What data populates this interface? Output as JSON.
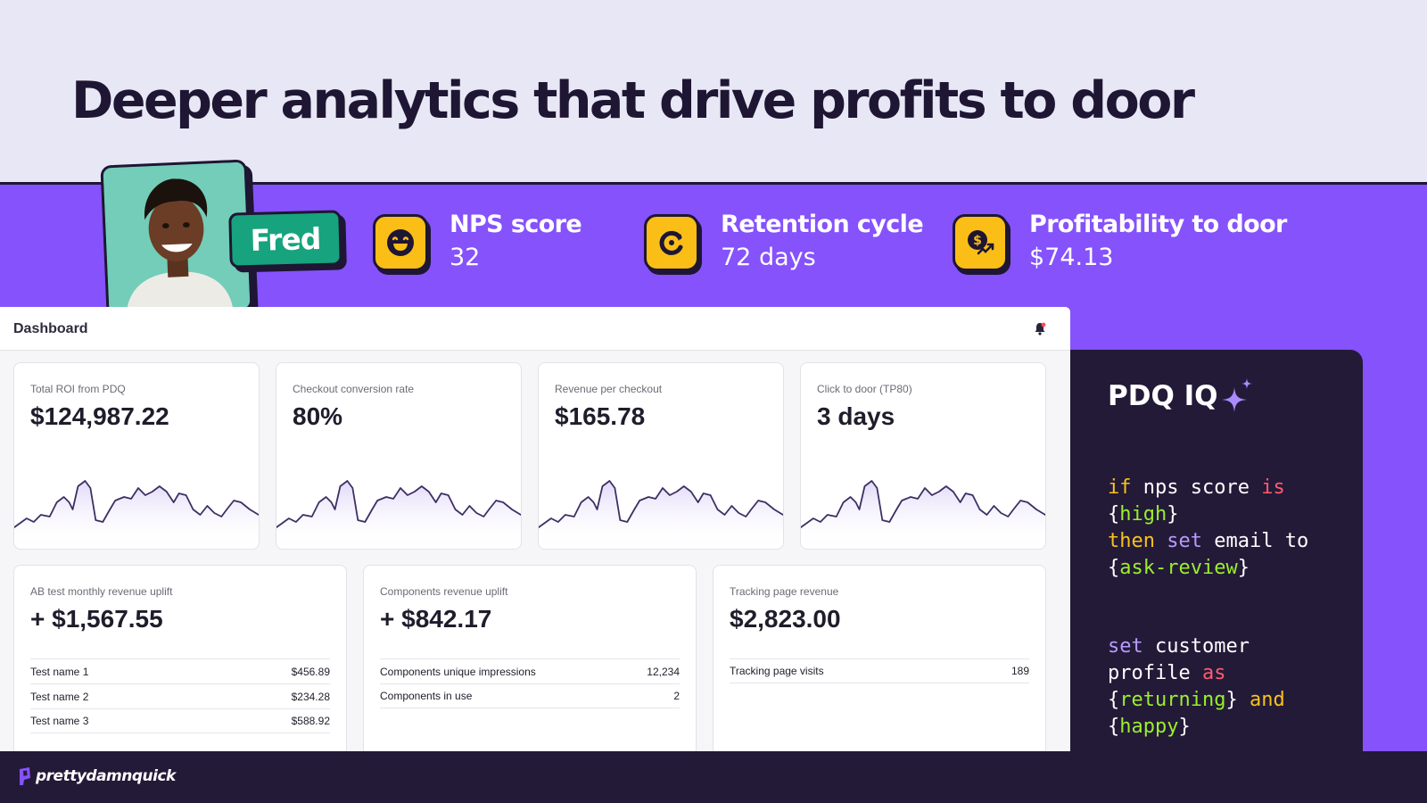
{
  "headline": "Deeper analytics that drive profits to door",
  "profile": {
    "name": "Fred"
  },
  "kpis": [
    {
      "icon": "smile-icon",
      "title": "NPS score",
      "value": "32"
    },
    {
      "icon": "refresh-icon",
      "title": "Retention cycle",
      "value": "72 days"
    },
    {
      "icon": "coin-trend-icon",
      "title": "Profitability to door",
      "value": "$74.13"
    }
  ],
  "dashboard": {
    "title": "Dashboard",
    "bell_icon": "bell-icon",
    "metric_cards": [
      {
        "label": "Total ROI from PDQ",
        "value": "$124,987.22"
      },
      {
        "label": "Checkout conversion rate",
        "value": "80%"
      },
      {
        "label": "Revenue per checkout",
        "value": "$165.78"
      },
      {
        "label": "Click to door (TP80)",
        "value": "3 days"
      }
    ],
    "detail_cards": [
      {
        "label": "AB test monthly revenue uplift",
        "value": "+ $1,567.55",
        "rows": [
          {
            "name": "Test name 1",
            "value": "$456.89"
          },
          {
            "name": "Test name 2",
            "value": "$234.28"
          },
          {
            "name": "Test name 3",
            "value": "$588.92"
          }
        ]
      },
      {
        "label": "Components revenue uplift",
        "value": "+ $842.17",
        "rows": [
          {
            "name": "Components unique impressions",
            "value": "12,234"
          },
          {
            "name": "Components in use",
            "value": "2"
          }
        ]
      },
      {
        "label": "Tracking page revenue",
        "value": "$2,823.00",
        "rows": [
          {
            "name": "Tracking page visits",
            "value": "189"
          }
        ]
      }
    ]
  },
  "iq": {
    "title": "PDQ IQ",
    "sparkle_icon": "sparkle-icon",
    "rules": [
      {
        "if": "if",
        "nps": "nps score",
        "is": "is",
        "high": "high",
        "then": "then",
        "set": "set",
        "email": "email",
        "to": "to",
        "review": "ask-review"
      },
      {
        "set": "set",
        "customer": "customer",
        "profile": "profile",
        "as": "as",
        "returning": "returning",
        "and": "and",
        "happy": "happy"
      }
    ]
  },
  "brand": {
    "logo_text": "prettydamnquick"
  },
  "colors": {
    "purple": "#8552fb",
    "dark": "#231a38",
    "yellow": "#fbbe16",
    "green": "#17a37d",
    "teal": "#73cdb8"
  }
}
